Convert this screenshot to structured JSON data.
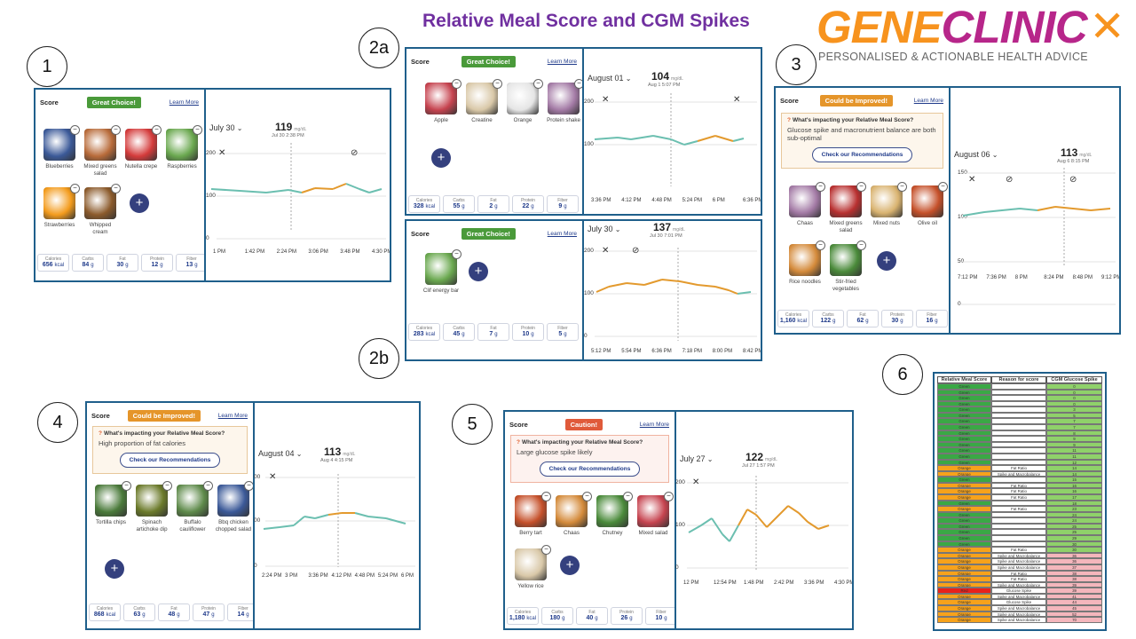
{
  "title": "Relative Meal Score and CGM Spikes",
  "logo": {
    "gene": "GENE",
    "clinic": "CLINIC",
    "tagline": "PERSONALISED & ACTIONABLE HEALTH ADVICE"
  },
  "labels": [
    "1",
    "2a",
    "2b",
    "3",
    "4",
    "5",
    "6"
  ],
  "common": {
    "score": "Score",
    "learn": "Learn More",
    "callout_q": "What's impacting your Relative Meal Score?",
    "reco": "Check our Recommendations",
    "unit": "mg/dL",
    "nutri_labels": [
      "Calories",
      "Carbs",
      "Fat",
      "Protein",
      "Fiber"
    ]
  },
  "panels": [
    {
      "id": "p1",
      "badge": "Great Choice!",
      "items": [
        "Blueberries",
        "Mixed greens salad",
        "Nutella crepe",
        "Raspberries",
        "Strawberries",
        "Whipped cream"
      ],
      "nutri": [
        [
          "656",
          "kcal"
        ],
        [
          "84",
          "g"
        ],
        [
          "30",
          "g"
        ],
        [
          "12",
          "g"
        ],
        [
          "13",
          "g"
        ]
      ],
      "date": "July 30",
      "glucose": "119",
      "glucose_time": "Jul 30 2:38 PM",
      "yticks": [
        "200",
        "100",
        "0"
      ],
      "xticks": [
        "1 PM",
        "1:42 PM",
        "2:24 PM",
        "3:06 PM",
        "3:48 PM",
        "4:30 PM"
      ]
    },
    {
      "id": "p2a",
      "badge": "Great Choice!",
      "items": [
        "Apple",
        "Creatine",
        "Orange",
        "Protein shake"
      ],
      "nutri": [
        [
          "328",
          "kcal"
        ],
        [
          "55",
          "g"
        ],
        [
          "2",
          "g"
        ],
        [
          "22",
          "g"
        ],
        [
          "9",
          "g"
        ]
      ],
      "date": "August 01",
      "glucose": "104",
      "glucose_time": "Aug 1 5:07 PM",
      "yticks": [
        "200",
        "100"
      ],
      "xticks": [
        "3:36 PM",
        "4:12 PM",
        "4:48 PM",
        "5:24 PM",
        "6 PM",
        "6:36 PM"
      ]
    },
    {
      "id": "p2b",
      "badge": "Great Choice!",
      "items": [
        "Clif energy bar"
      ],
      "nutri": [
        [
          "283",
          "kcal"
        ],
        [
          "45",
          "g"
        ],
        [
          "7",
          "g"
        ],
        [
          "10",
          "g"
        ],
        [
          "5",
          "g"
        ]
      ],
      "date": "July 30",
      "glucose": "137",
      "glucose_time": "Jul 30 7:01 PM",
      "yticks": [
        "200",
        "100",
        "0"
      ],
      "xticks": [
        "5:12 PM",
        "5:54 PM",
        "6:36 PM",
        "7:18 PM",
        "8:00 PM",
        "8:42 PM"
      ]
    },
    {
      "id": "p3",
      "badge": "Could be Improved!",
      "callout": "Glucose spike and macronutrient balance are both sub-optimal",
      "items": [
        "Chaas",
        "Mixed greens salad",
        "Mixed nuts",
        "Olive oil",
        "Rice noodles",
        "Stir-fried vegetables"
      ],
      "nutri": [
        [
          "1,160",
          "kcal"
        ],
        [
          "122",
          "g"
        ],
        [
          "62",
          "g"
        ],
        [
          "30",
          "g"
        ],
        [
          "16",
          "g"
        ]
      ],
      "date": "August 06",
      "glucose": "113",
      "glucose_time": "Aug 6 8:15 PM",
      "yticks": [
        "150",
        "100",
        "50",
        "0"
      ],
      "xticks": [
        "7:12 PM",
        "7:36 PM",
        "8 PM",
        "8:24 PM",
        "8:48 PM",
        "9:12 PM"
      ]
    },
    {
      "id": "p4",
      "badge": "Could be Improved!",
      "callout": "High proportion of fat calories",
      "items": [
        "Tortilla chips",
        "Spinach artichoke dip",
        "Buffalo cauliflower",
        "Bbq chicken chopped salad"
      ],
      "nutri": [
        [
          "868",
          "kcal"
        ],
        [
          "63",
          "g"
        ],
        [
          "48",
          "g"
        ],
        [
          "47",
          "g"
        ],
        [
          "14",
          "g"
        ]
      ],
      "date": "August 04",
      "glucose": "113",
      "glucose_time": "Aug 4 4:15 PM",
      "yticks": [
        "00",
        "00",
        "0"
      ],
      "xticks": [
        "2:24 PM",
        "3 PM",
        "3:36 PM",
        "4:12 PM",
        "4:48 PM",
        "5:24 PM",
        "6 PM"
      ]
    },
    {
      "id": "p5",
      "badge": "Caution!",
      "callout": "Large glucose spike likely",
      "items": [
        "Berry tart",
        "Chaas",
        "Chutney",
        "Mixed salad",
        "Yellow rice"
      ],
      "nutri": [
        [
          "1,180",
          "kcal"
        ],
        [
          "180",
          "g"
        ],
        [
          "40",
          "g"
        ],
        [
          "26",
          "g"
        ],
        [
          "10",
          "g"
        ]
      ],
      "date": "July 27",
      "glucose": "122",
      "glucose_time": "Jul 27 1:57 PM",
      "yticks": [
        "200",
        "100",
        "0"
      ],
      "xticks": [
        "12 PM",
        "12:54 PM",
        "1:48 PM",
        "2:42 PM",
        "3:36 PM",
        "4:30 PM"
      ]
    }
  ],
  "table": {
    "headers": [
      "Relative Meal Score",
      "Reason for score",
      "CGM Glucose Spike"
    ],
    "rows": [
      [
        "Green",
        "",
        "0"
      ],
      [
        "Green",
        "",
        "0"
      ],
      [
        "Green",
        "",
        "0"
      ],
      [
        "Green",
        "",
        "0"
      ],
      [
        "Green",
        "",
        "3"
      ],
      [
        "Green",
        "",
        "5"
      ],
      [
        "Green",
        "",
        "7"
      ],
      [
        "Green",
        "",
        "7"
      ],
      [
        "Green",
        "",
        "8"
      ],
      [
        "Green",
        "",
        "9"
      ],
      [
        "Green",
        "",
        "9"
      ],
      [
        "Green",
        "",
        "11"
      ],
      [
        "Green",
        "",
        "11"
      ],
      [
        "Green",
        "",
        "12"
      ],
      [
        "Orange",
        "Fat Ratio",
        "14"
      ],
      [
        "Orange",
        "Spike and Macrobalance",
        "14"
      ],
      [
        "Green",
        "",
        "15"
      ],
      [
        "Orange",
        "Fat Ratio",
        "16"
      ],
      [
        "Orange",
        "Fat Ratio",
        "16"
      ],
      [
        "Orange",
        "Fat Ratio",
        "17"
      ],
      [
        "Green",
        "",
        "18"
      ],
      [
        "Orange",
        "Fat Ratio",
        "23"
      ],
      [
        "Green",
        "",
        "24"
      ],
      [
        "Green",
        "",
        "24"
      ],
      [
        "Green",
        "",
        "25"
      ],
      [
        "Green",
        "",
        "25"
      ],
      [
        "Green",
        "",
        "29"
      ],
      [
        "Green",
        "",
        "30"
      ],
      [
        "Orange",
        "Fat Ratio",
        "30"
      ],
      [
        "Orange",
        "Spike and Macrobalance",
        "36"
      ],
      [
        "Orange",
        "Spike and Macrobalance",
        "36"
      ],
      [
        "Orange",
        "Spike and Macrobalance",
        "37"
      ],
      [
        "Orange",
        "Fat Ratio",
        "38"
      ],
      [
        "Orange",
        "Fat Ratio",
        "38"
      ],
      [
        "Orange",
        "Spike and Macrobalance",
        "39"
      ],
      [
        "Red",
        "Glucose Spike",
        "39"
      ],
      [
        "Orange",
        "Spike and Macrobalance",
        "41"
      ],
      [
        "Orange",
        "Glucose Spike",
        "44"
      ],
      [
        "Orange",
        "Spike and Macrobalance",
        "45"
      ],
      [
        "Orange",
        "Spike and Macrobalance",
        "52"
      ],
      [
        "Orange",
        "Spike and Macrobalance",
        "70"
      ]
    ]
  },
  "colors": {
    "green": "#3aa845",
    "orange": "#f7a21b",
    "red": "#e8201c",
    "pink": "#f4b6bc",
    "ltgreen": "#8fd16a",
    "teal": "#6bbfb0",
    "curve_orange": "#e39a2e"
  }
}
